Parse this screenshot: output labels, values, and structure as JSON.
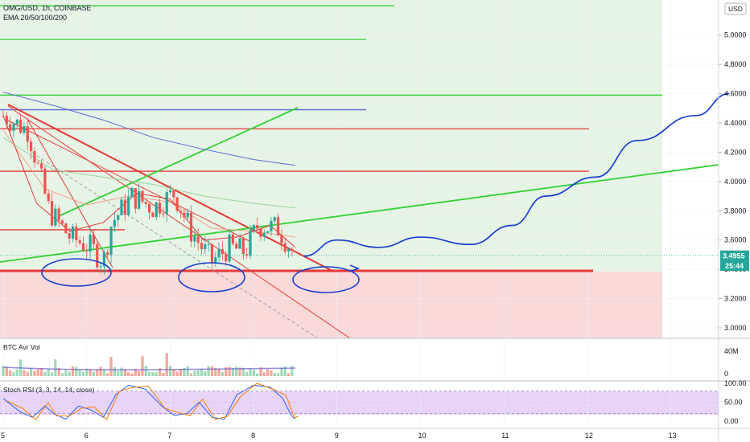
{
  "header": {
    "symbol_line": "OMG/USD, 1h, COINBASE",
    "ema_line": "EMA 20/50/100/200"
  },
  "currency_button": "USD",
  "panels": {
    "volume_label": "BTC Avr Vol",
    "stoch_label": "Stoch RSI (3, 3, 14, 14, close)"
  },
  "price_tag": "3.4955",
  "countdown_tag": "25:44",
  "colors": {
    "up": "#26a69a",
    "down": "#ef5350",
    "trend_red": "#e53935",
    "trend_green": "#33d133",
    "ema200": "#5b6bd6",
    "forecast": "#1a3fcf",
    "green_zone": "#e6f4e6",
    "red_zone": "#fad9d9",
    "stoch_band": "#e7d4f7"
  },
  "chart_data": [
    {
      "type": "candlestick",
      "title": "OMG/USD, 1h, COINBASE",
      "x_ticks": [
        "5",
        "6",
        "7",
        "8",
        "9",
        "10",
        "11",
        "12",
        "13"
      ],
      "y_ticks": [
        "3.0000",
        "3.2000",
        "3.4000",
        "3.6000",
        "3.8000",
        "4.0000",
        "4.2000",
        "4.4000",
        "4.6000",
        "4.8000",
        "5.0000"
      ],
      "ylim": [
        2.94,
        5.23
      ],
      "current_price": 3.4955,
      "horizontal_levels": [
        {
          "price": 5.2,
          "color": "green"
        },
        {
          "price": 4.97,
          "color": "green"
        },
        {
          "price": 4.59,
          "color": "green"
        },
        {
          "price": 4.49,
          "color": "blue"
        },
        {
          "price": 4.36,
          "color": "red"
        },
        {
          "price": 4.07,
          "color": "red"
        },
        {
          "price": 3.67,
          "color": "red"
        },
        {
          "price": 3.39,
          "color": "red",
          "bold": true
        }
      ],
      "forecast_path": [
        {
          "x": 8.6,
          "y": 3.49
        },
        {
          "x": 9.0,
          "y": 3.6
        },
        {
          "x": 9.5,
          "y": 3.55
        },
        {
          "x": 10.0,
          "y": 3.62
        },
        {
          "x": 10.6,
          "y": 3.57
        },
        {
          "x": 11.1,
          "y": 3.7
        },
        {
          "x": 11.5,
          "y": 3.9
        },
        {
          "x": 12.1,
          "y": 4.03
        },
        {
          "x": 12.6,
          "y": 4.28
        },
        {
          "x": 13.3,
          "y": 4.45
        },
        {
          "x": 13.7,
          "y": 4.6
        }
      ]
    },
    {
      "type": "bar",
      "name": "BTC Avr Vol",
      "y_ticks": [
        "0",
        "40M"
      ]
    },
    {
      "type": "line",
      "name": "Stoch RSI (3, 3, 14, 14, close)",
      "y_ticks": [
        "0.00",
        "50.00",
        "100.00"
      ],
      "ylim": [
        -10,
        110
      ],
      "bands": [
        20,
        80
      ]
    }
  ]
}
